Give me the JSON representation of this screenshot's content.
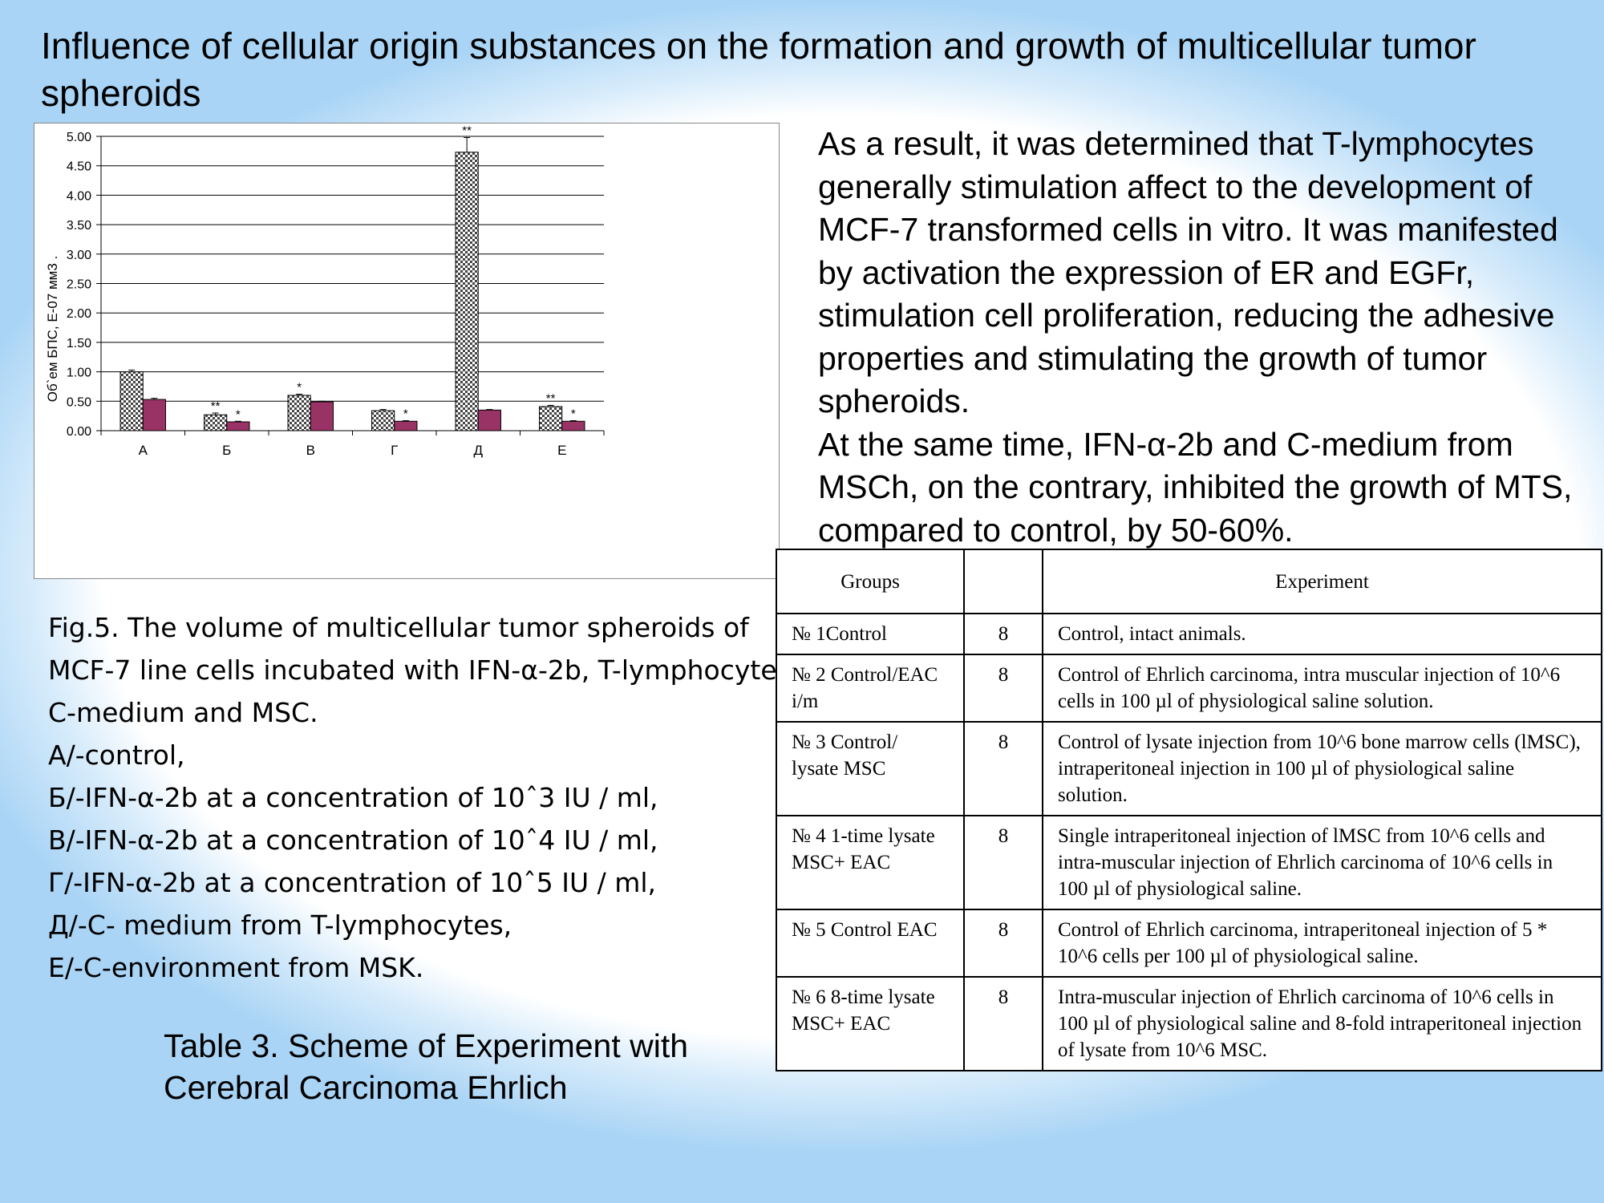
{
  "title": "Influence of cellular origin substances on the formation and growth of multicellular tumor spheroids",
  "chart_data": {
    "type": "bar",
    "y_label": "Об`ем БПС, Е-07 мм3 .",
    "categories": [
      "А",
      "Б",
      "В",
      "Г",
      "Д",
      "Е"
    ],
    "series": [
      {
        "color": "#9a9a9a",
        "fill_pattern": "checker",
        "values": [
          1.0,
          0.27,
          0.6,
          0.34,
          4.73,
          0.41
        ],
        "errors": [
          0.03,
          0.03,
          0.02,
          0.02,
          0.25,
          0.02
        ],
        "annotations": [
          null,
          "**",
          "*",
          null,
          "**",
          "**"
        ]
      },
      {
        "color": "#993366",
        "values": [
          0.53,
          0.15,
          0.49,
          0.16,
          0.35,
          0.16
        ],
        "errors": [
          0.02,
          0.01,
          0.01,
          0.01,
          0.01,
          0.01
        ],
        "annotations": [
          null,
          "*",
          null,
          "*",
          null,
          "*"
        ]
      }
    ],
    "ylim": [
      0,
      5
    ],
    "yticks": [
      {
        "value": 0,
        "label": "0.00"
      },
      {
        "value": 0.5,
        "label": "0.50"
      },
      {
        "value": 1,
        "label": "1.00"
      },
      {
        "value": 1.5,
        "label": "1.50"
      },
      {
        "value": 2,
        "label": "2.00"
      },
      {
        "value": 2.5,
        "label": "2.50"
      },
      {
        "value": 3,
        "label": "3.00"
      },
      {
        "value": 3.5,
        "label": "3.50"
      },
      {
        "value": 4,
        "label": "4.00"
      },
      {
        "value": 4.5,
        "label": "4.50"
      },
      {
        "value": 5,
        "label": "5.00"
      }
    ],
    "grid": true
  },
  "body": [
    "As a result, it was determined that T-lymphocytes generally stimulation affect to the development of MCF-7 transformed cells in vitro. It was manifested by activation the expression of ER and EGFr, stimulation cell proliferation, reducing the adhesive properties and stimulating the growth of tumor spheroids.",
    "At the same time, IFN-α-2b and C-medium from MSCh, on the contrary, inhibited the growth of MTS, compared to control, by 50-60%."
  ],
  "caption": [
    "Fig.5. The volume of multicellular tumor spheroids of MCF-7 line cells incubated with IFN-α-2b, T-lymphocyte C-medium and MSC.",
    "А/-control,",
    "Б/-IFN-α-2b at a concentration of 10ˆ3 IU / ml,",
    "В/-IFN-α-2b at a concentration of 10ˆ4 IU / ml,",
    "Г/-IFN-α-2b at a concentration of 10ˆ5 IU / ml,",
    "Д/-C- medium from T-lymphocytes,",
    "Е/-C-environment from MSK."
  ],
  "table_caption": "Table 3. Scheme of Experiment with Cerebral Carcinoma Ehrlich",
  "table": {
    "header": [
      "Groups",
      "Experiment"
    ],
    "rows": [
      [
        "№ 1Control",
        8,
        "Control, intact animals."
      ],
      [
        "№ 2 Control/EAC i/m",
        8,
        "Control of Ehrlich carcinoma, intra muscular injection of 10^6 cells in 100 µl of physiological saline solution."
      ],
      [
        "№ 3 Control/ lysate MSC",
        8,
        "Control of lysate injection from 10^6 bone marrow cells (lMSC), intraperitoneal injection in 100 µl of physiological saline solution."
      ],
      [
        "№ 4 1-time lysate MSC+ EAC",
        8,
        "Single intraperitoneal injection of lMSC from 10^6 cells and intra-muscular injection of Ehrlich carcinoma of 10^6 cells in 100 µl of physiological saline."
      ],
      [
        "№ 5 Control EAC",
        8,
        "Control of Ehrlich carcinoma, intraperitoneal injection of 5 * 10^6 cells per 100 µl of physiological saline."
      ],
      [
        "№ 6 8-time lysate MSC+ EAC",
        8,
        "Intra-muscular injection of Ehrlich carcinoma of 10^6 cells in 100 µl of physiological saline and 8-fold intraperitoneal injection of lysate from 10^6 MSC."
      ]
    ]
  }
}
